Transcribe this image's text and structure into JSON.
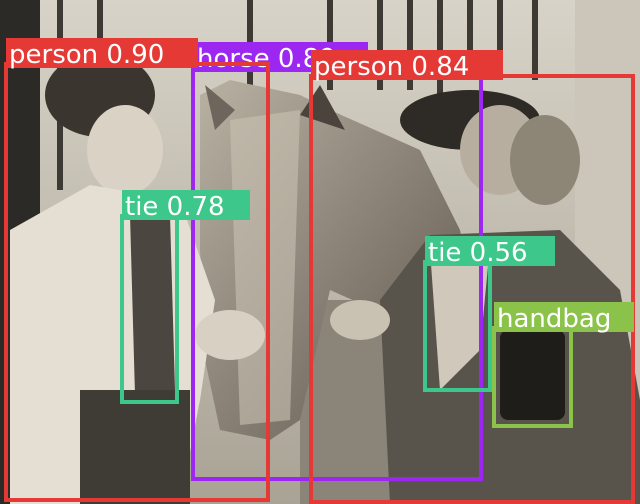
{
  "image": {
    "description": "Vintage sepia photo of two women with a horse by a stable door"
  },
  "detections": [
    {
      "label": "person 0.90",
      "color": "#e53935"
    },
    {
      "label": "horse 0.89",
      "color": "#9c27f0"
    },
    {
      "label": "person 0.84",
      "color": "#e53935"
    },
    {
      "label": "tie 0.78",
      "color": "#3ec78a"
    },
    {
      "label": "tie 0.56",
      "color": "#3ec78a"
    },
    {
      "label": "handbag",
      "color": "#8bc34a"
    }
  ]
}
